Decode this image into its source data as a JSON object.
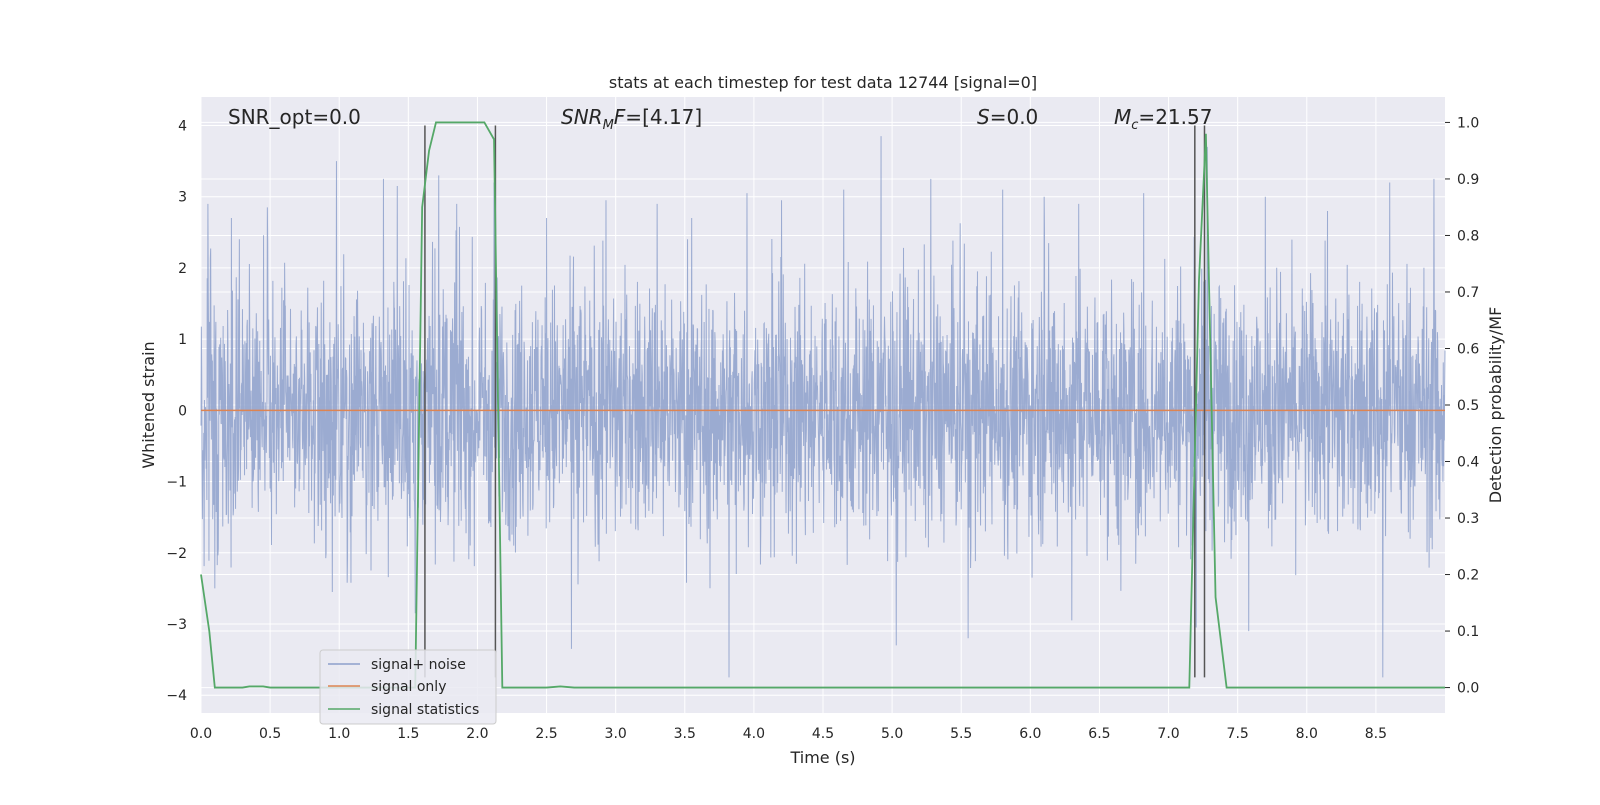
{
  "chart_data": {
    "type": "line",
    "title": "stats at each timestep for test data 12744 [signal=0]",
    "xlabel": "Time (s)",
    "ylabel": "Whitened strain",
    "ylabel_right": "Detection probability/MF",
    "xlim": [
      0.0,
      9.0
    ],
    "ylim": [
      -4.25,
      4.4
    ],
    "ylim_right": [
      -0.045,
      1.045
    ],
    "xticks": [
      "0.0",
      "0.5",
      "1.0",
      "1.5",
      "2.0",
      "2.5",
      "3.0",
      "3.5",
      "4.0",
      "4.5",
      "5.0",
      "5.5",
      "6.0",
      "6.5",
      "7.0",
      "7.5",
      "8.0",
      "8.5"
    ],
    "yticks": [
      "4",
      "3",
      "2",
      "1",
      "0",
      "−1",
      "−2",
      "−3",
      "−4"
    ],
    "yticks_right": [
      "1.0",
      "0.9",
      "0.8",
      "0.7",
      "0.6",
      "0.5",
      "0.4",
      "0.3",
      "0.2",
      "0.1",
      "0.0"
    ],
    "grid": true,
    "legend_position": "lower-left",
    "annotations": {
      "snr_opt": "SNR_opt=0.0",
      "snr_mf": "[4.17]",
      "s_value": "0.0",
      "mc_value": "21.57"
    },
    "series": [
      {
        "name": "signal+ noise",
        "axis": "left",
        "color": "#8da0cb",
        "note": "whitened noise, dense band roughly within ±1.5 with excursions between -3.75 and 3.85",
        "spikes_up": [
          [
            0.05,
            2.9
          ],
          [
            0.22,
            2.7
          ],
          [
            0.48,
            2.85
          ],
          [
            0.98,
            3.5
          ],
          [
            1.32,
            3.25
          ],
          [
            1.42,
            3.15
          ],
          [
            1.72,
            3.3
          ],
          [
            1.85,
            2.9
          ],
          [
            2.12,
            3.2
          ],
          [
            2.5,
            2.7
          ],
          [
            2.93,
            2.95
          ],
          [
            3.3,
            2.9
          ],
          [
            3.55,
            2.7
          ],
          [
            3.95,
            3.05
          ],
          [
            4.2,
            2.95
          ],
          [
            4.65,
            3.1
          ],
          [
            4.92,
            3.85
          ],
          [
            5.28,
            3.25
          ],
          [
            5.8,
            3.1
          ],
          [
            6.1,
            3.0
          ],
          [
            6.35,
            2.9
          ],
          [
            6.82,
            3.05
          ],
          [
            7.28,
            3.7
          ],
          [
            7.7,
            3.0
          ],
          [
            8.15,
            2.8
          ],
          [
            8.6,
            3.2
          ],
          [
            8.92,
            3.25
          ]
        ],
        "spikes_down": [
          [
            0.1,
            -2.5
          ],
          [
            0.95,
            -2.55
          ],
          [
            1.55,
            -2.85
          ],
          [
            2.68,
            -3.35
          ],
          [
            3.82,
            -3.75
          ],
          [
            5.03,
            -3.3
          ],
          [
            5.55,
            -3.2
          ],
          [
            6.3,
            -2.95
          ],
          [
            7.2,
            -3.05
          ],
          [
            7.58,
            -3.1
          ],
          [
            8.55,
            -3.75
          ],
          [
            8.92,
            -3.0
          ]
        ]
      },
      {
        "name": "signal only",
        "axis": "left",
        "color": "#dd8452",
        "x": [
          0.0,
          9.0
        ],
        "y": [
          0.0,
          0.0
        ]
      },
      {
        "name": "signal statistics",
        "axis": "right",
        "color": "#55a868",
        "x": [
          0.0,
          0.06,
          0.1,
          0.3,
          0.35,
          0.45,
          0.5,
          1.55,
          1.6,
          1.65,
          1.7,
          2.05,
          2.12,
          2.18,
          2.2,
          2.5,
          2.6,
          2.7,
          7.15,
          7.22,
          7.27,
          7.34,
          7.42,
          7.5,
          9.0
        ],
        "y": [
          0.2,
          0.1,
          0.0,
          0.0,
          0.002,
          0.002,
          0.0,
          0.0,
          0.85,
          0.95,
          1.0,
          1.0,
          0.97,
          0.0,
          0.0,
          0.0,
          0.002,
          0.0,
          0.0,
          0.72,
          0.98,
          0.16,
          0.0,
          0.0,
          0.0
        ]
      }
    ],
    "vertical_lines": [
      1.62,
      2.13,
      7.19,
      7.26
    ],
    "vertical_line_color": "#555555"
  },
  "colors": {
    "plot_background": "#eaeaf2",
    "grid": "#ffffff",
    "noise": "#8da0cb",
    "signal": "#dd8452",
    "statistics": "#55a868"
  }
}
